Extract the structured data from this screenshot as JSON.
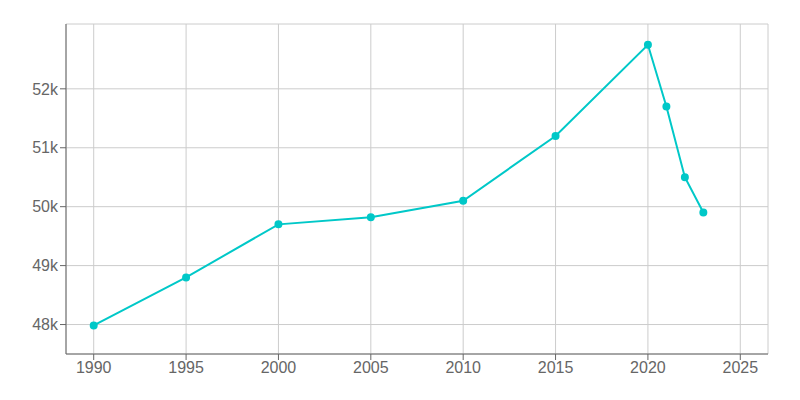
{
  "chart_data": {
    "type": "line",
    "x": [
      1990,
      1995,
      2000,
      2005,
      2010,
      2015,
      2020,
      2021,
      2022,
      2023
    ],
    "values": [
      47984,
      48800,
      49700,
      49820,
      50100,
      51200,
      52747,
      51700,
      50500,
      49900
    ],
    "color": "#00C8C8",
    "marker": "circle",
    "xlim": [
      1988.5,
      2026.5
    ],
    "xticks": [
      1990,
      1995,
      2000,
      2005,
      2010,
      2015,
      2020,
      2025
    ],
    "ylim": [
      47500,
      53100
    ],
    "yticks": [
      {
        "value": 48000,
        "label": "48k"
      },
      {
        "value": 49000,
        "label": "49k"
      },
      {
        "value": 50000,
        "label": "50k"
      },
      {
        "value": 51000,
        "label": "51k"
      },
      {
        "value": 52000,
        "label": "52k"
      }
    ],
    "grid": true
  }
}
